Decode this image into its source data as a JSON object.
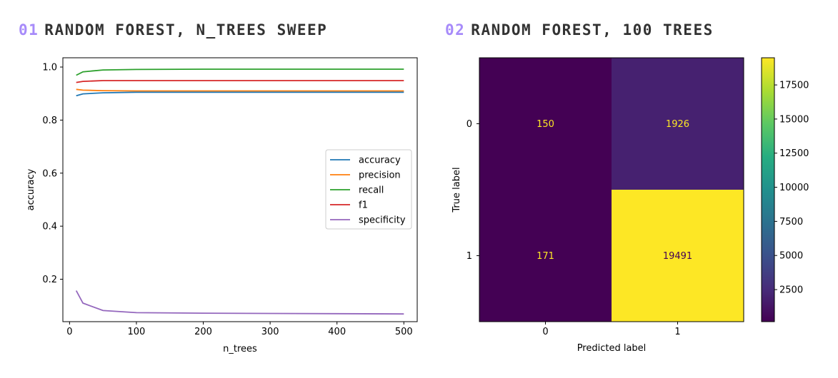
{
  "panels": [
    {
      "number": "01",
      "title": "RANDOM FOREST, N_TREES SWEEP"
    },
    {
      "number": "02",
      "title": "RANDOM FOREST, 100 TREES"
    }
  ],
  "chart_data": [
    {
      "type": "line",
      "title": "",
      "xlabel": "n_trees",
      "ylabel": "accuracy",
      "xlim": [
        -10,
        520
      ],
      "ylim": [
        0.04,
        1.035
      ],
      "x_ticks": [
        0,
        100,
        200,
        300,
        400,
        500
      ],
      "y_ticks": [
        0.2,
        0.4,
        0.6,
        0.8,
        1.0
      ],
      "y_tick_labels": [
        "0.2",
        "0.4",
        "0.6",
        "0.8",
        "1.0"
      ],
      "legend": "center-right",
      "grid": false,
      "x": [
        10,
        20,
        50,
        100,
        200,
        300,
        400,
        500
      ],
      "series": [
        {
          "name": "accuracy",
          "color": "#1f77b4",
          "values": [
            0.892,
            0.899,
            0.903,
            0.905,
            0.905,
            0.905,
            0.905,
            0.905
          ]
        },
        {
          "name": "precision",
          "color": "#ff7f0e",
          "values": [
            0.916,
            0.913,
            0.911,
            0.91,
            0.91,
            0.91,
            0.91,
            0.91
          ]
        },
        {
          "name": "recall",
          "color": "#2ca02c",
          "values": [
            0.969,
            0.982,
            0.989,
            0.991,
            0.992,
            0.992,
            0.992,
            0.992
          ]
        },
        {
          "name": "f1",
          "color": "#d62728",
          "values": [
            0.942,
            0.946,
            0.949,
            0.949,
            0.949,
            0.949,
            0.949,
            0.949
          ]
        },
        {
          "name": "specificity",
          "color": "#9467bd",
          "values": [
            0.157,
            0.11,
            0.082,
            0.074,
            0.072,
            0.071,
            0.07,
            0.069
          ]
        }
      ]
    },
    {
      "type": "heatmap",
      "title": "",
      "xlabel": "Predicted label",
      "ylabel": "True label",
      "x_categories": [
        "0",
        "1"
      ],
      "y_categories": [
        "0",
        "1"
      ],
      "values": [
        [
          150,
          1926
        ],
        [
          171,
          19491
        ]
      ],
      "colormap": "viridis",
      "colorbar_range": [
        150,
        19491
      ],
      "colorbar_ticks": [
        2500,
        5000,
        7500,
        10000,
        12500,
        15000,
        17500
      ],
      "colorbar_tick_labels": [
        "2500",
        "5000",
        "7500",
        "10000",
        "12500",
        "15000",
        "17500"
      ]
    }
  ]
}
